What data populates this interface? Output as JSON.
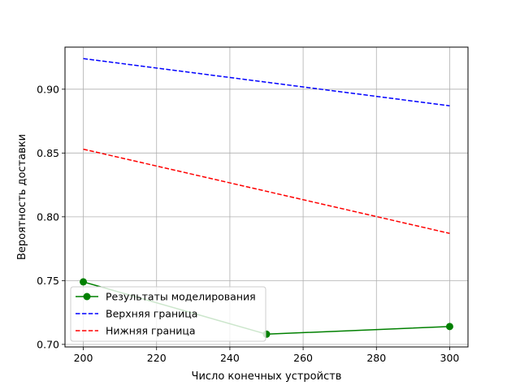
{
  "chart_data": {
    "type": "line",
    "xlabel": "Число конечных устройств",
    "ylabel": "Вероятность доставки",
    "xlim": [
      195,
      305
    ],
    "ylim": [
      0.698,
      0.933
    ],
    "xticks": [
      200,
      220,
      240,
      260,
      280,
      300
    ],
    "yticks": [
      0.7,
      0.75,
      0.8,
      0.85,
      0.9
    ],
    "ytick_labels": [
      "0.70",
      "0.75",
      "0.80",
      "0.85",
      "0.90"
    ],
    "grid": true,
    "legend_position": "lower-left",
    "series": [
      {
        "name": "Результаты моделирования",
        "color": "#008000",
        "style": "solid",
        "marker": "circle",
        "x": [
          200,
          250,
          300
        ],
        "y": [
          0.749,
          0.708,
          0.714
        ]
      },
      {
        "name": "Верхняя граница",
        "color": "#0000ff",
        "style": "dashed",
        "marker": "none",
        "x": [
          200,
          300
        ],
        "y": [
          0.924,
          0.887
        ]
      },
      {
        "name": "Нижняя граница",
        "color": "#ff0000",
        "style": "dashed",
        "marker": "none",
        "x": [
          200,
          300
        ],
        "y": [
          0.853,
          0.787
        ]
      }
    ]
  }
}
